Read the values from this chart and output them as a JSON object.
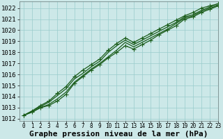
{
  "xlabel": "Graphe pression niveau de la mer (hPa)",
  "background_color": "#cce8e8",
  "grid_color": "#99cccc",
  "line_color": "#1a5c1a",
  "xlim": [
    -0.5,
    23
  ],
  "ylim": [
    1011.8,
    1022.6
  ],
  "yticks": [
    1012,
    1013,
    1014,
    1015,
    1016,
    1017,
    1018,
    1019,
    1020,
    1021,
    1022
  ],
  "xticks": [
    0,
    1,
    2,
    3,
    4,
    5,
    6,
    7,
    8,
    9,
    10,
    11,
    12,
    13,
    14,
    15,
    16,
    17,
    18,
    19,
    20,
    21,
    22,
    23
  ],
  "series": [
    [
      1012.3,
      1012.6,
      1013.0,
      1013.2,
      1013.6,
      1014.2,
      1015.2,
      1015.8,
      1016.4,
      1016.9,
      1017.5,
      1018.0,
      1018.6,
      1018.3,
      1018.7,
      1019.1,
      1019.6,
      1020.0,
      1020.4,
      1021.0,
      1021.2,
      1021.6,
      1021.9,
      1022.2
    ],
    [
      1012.3,
      1012.6,
      1013.0,
      1013.3,
      1013.8,
      1014.4,
      1015.3,
      1015.9,
      1016.5,
      1017.0,
      1017.6,
      1018.2,
      1018.9,
      1018.5,
      1018.9,
      1019.3,
      1019.7,
      1020.1,
      1020.6,
      1021.1,
      1021.3,
      1021.7,
      1022.0,
      1022.2
    ],
    [
      1012.3,
      1012.7,
      1013.1,
      1013.5,
      1014.1,
      1014.7,
      1015.6,
      1016.1,
      1016.7,
      1017.2,
      1018.0,
      1018.6,
      1019.1,
      1018.7,
      1019.1,
      1019.5,
      1019.9,
      1020.3,
      1020.7,
      1021.2,
      1021.4,
      1021.8,
      1022.1,
      1022.3
    ],
    [
      1012.3,
      1012.7,
      1013.2,
      1013.6,
      1014.3,
      1014.9,
      1015.8,
      1016.4,
      1016.9,
      1017.4,
      1018.2,
      1018.8,
      1019.3,
      1018.9,
      1019.3,
      1019.7,
      1020.1,
      1020.5,
      1020.9,
      1021.3,
      1021.6,
      1022.0,
      1022.2,
      1022.4
    ]
  ],
  "marker_indices_s0": [
    0,
    1,
    2,
    3,
    4,
    5,
    6,
    7,
    8,
    9,
    10,
    11,
    12,
    13,
    14,
    15,
    16,
    17,
    18,
    19,
    20,
    21,
    22,
    23
  ],
  "marker_style": "+",
  "marker_size": 4,
  "line_width": 0.9,
  "font_family": "monospace",
  "xlabel_fontsize": 8,
  "ytick_fontsize": 6.5,
  "xtick_fontsize": 5.5
}
